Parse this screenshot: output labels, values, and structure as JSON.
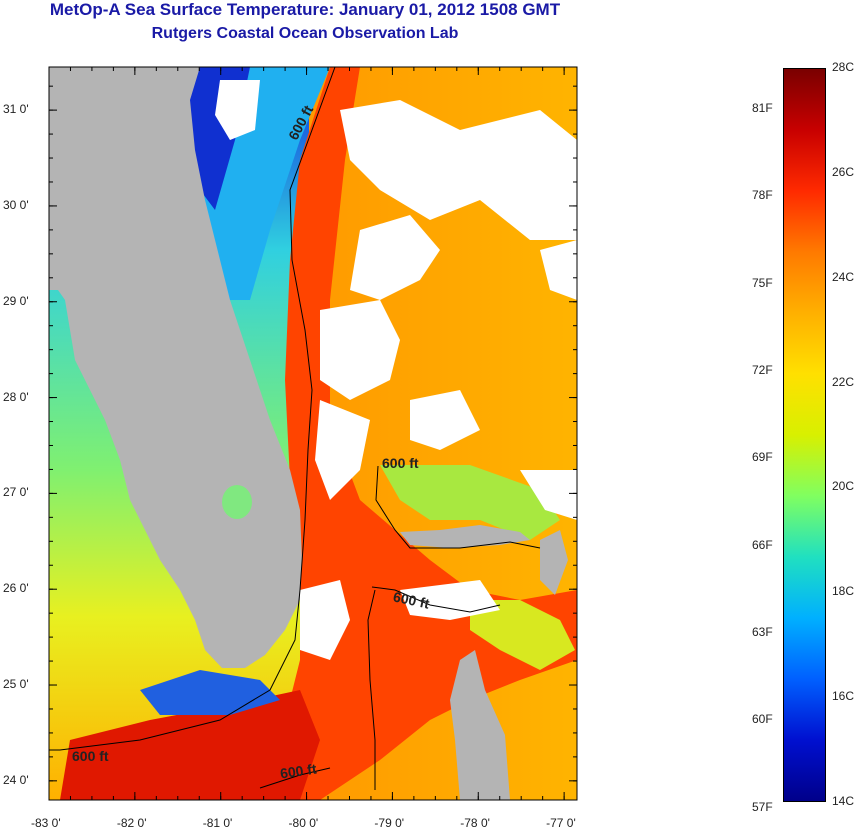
{
  "header": {
    "title": "MetOp-A Sea Surface Temperature:  January 01, 2012 1508 GMT",
    "subtitle": "Rutgers Coastal Ocean Observation Lab"
  },
  "map": {
    "x_ticks": [
      "-83 0'",
      "-82 0'",
      "-81 0'",
      "-80 0'",
      "-79 0'",
      "-78 0'",
      "-77 0'"
    ],
    "y_ticks": [
      "31 0'",
      "30 0'",
      "29 0'",
      "28 0'",
      "27 0'",
      "26 0'",
      "25 0'",
      "24 0'"
    ],
    "lon_range": [
      -83,
      -76.85
    ],
    "lat_range": [
      23.8,
      31.45
    ],
    "contour_labels": [
      "600 ft",
      "600 ft",
      "600 ft",
      "600 ft",
      "600 ft"
    ],
    "colors": {
      "land": "#b4b4b4",
      "cloud": "#ffffff"
    }
  },
  "colorbar": {
    "celsius_labels": [
      "28C",
      "26C",
      "24C",
      "22C",
      "20C",
      "18C",
      "16C",
      "14C"
    ],
    "fahrenheit_labels": [
      "81F",
      "78F",
      "75F",
      "72F",
      "69F",
      "66F",
      "63F",
      "60F",
      "57F"
    ],
    "range_c": [
      14,
      28
    ],
    "gradient": [
      "#7a0000",
      "#c80000",
      "#ff2a00",
      "#ff7a00",
      "#ffb000",
      "#ffe000",
      "#d8f000",
      "#80ff60",
      "#20e0c0",
      "#00b0ff",
      "#0060ff",
      "#0010d0",
      "#00008a"
    ]
  }
}
